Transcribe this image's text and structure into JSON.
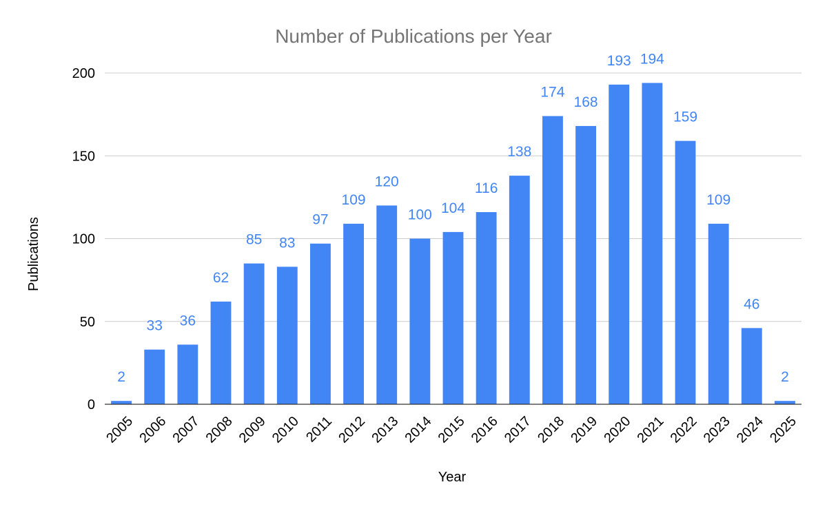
{
  "chart_data": {
    "type": "bar",
    "title": "Number of Publications per Year",
    "xlabel": "Year",
    "ylabel": "Publications",
    "categories": [
      "2005",
      "2006",
      "2007",
      "2008",
      "2009",
      "2010",
      "2011",
      "2012",
      "2013",
      "2014",
      "2015",
      "2016",
      "2017",
      "2018",
      "2019",
      "2020",
      "2021",
      "2022",
      "2023",
      "2024",
      "2025"
    ],
    "values": [
      2,
      33,
      36,
      62,
      85,
      83,
      97,
      109,
      120,
      100,
      104,
      116,
      138,
      174,
      168,
      193,
      194,
      159,
      109,
      46,
      2
    ],
    "yticks": [
      "0",
      "50",
      "100",
      "150",
      "200"
    ],
    "ylim": [
      0,
      200
    ],
    "grid": true,
    "legend": "none",
    "data_labels": true,
    "bar_color": "#4285f4",
    "label_color": "#4285f4"
  }
}
